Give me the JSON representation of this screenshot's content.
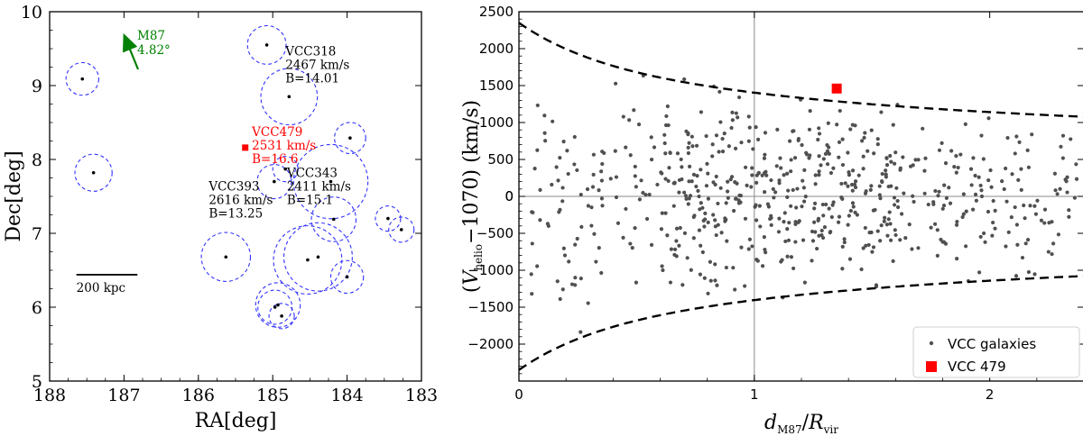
{
  "chart_data": [
    {
      "type": "scatter",
      "xlabel": "RA[deg]",
      "ylabel": "Dec[deg]",
      "xlim": [
        188,
        183
      ],
      "ylim": [
        5,
        10
      ],
      "x_ticks": [
        "188",
        "187",
        "186",
        "185",
        "184",
        "183"
      ],
      "y_ticks": [
        "5",
        "6",
        "7",
        "8",
        "9",
        "10"
      ],
      "colors": {
        "circles": "#3333ff",
        "points": "#000000",
        "highlight": "#ff0000",
        "arrow": "#008000"
      },
      "galaxies": [
        {
          "ra": 187.56,
          "dec": 9.09,
          "r": 0.22
        },
        {
          "ra": 187.41,
          "dec": 7.82,
          "r": 0.25
        },
        {
          "ra": 185.08,
          "dec": 9.55,
          "r": 0.26
        },
        {
          "ra": 184.78,
          "dec": 8.85,
          "r": 0.38
        },
        {
          "ra": 183.96,
          "dec": 8.29,
          "r": 0.21
        },
        {
          "ra": 184.83,
          "dec": 7.87,
          "r": 0.17
        },
        {
          "ra": 184.22,
          "dec": 7.7,
          "r": 0.5
        },
        {
          "ra": 184.98,
          "dec": 7.7,
          "r": 0.23
        },
        {
          "ra": 184.18,
          "dec": 7.19,
          "r": 0.3
        },
        {
          "ra": 183.45,
          "dec": 7.2,
          "r": 0.17
        },
        {
          "ra": 183.27,
          "dec": 7.05,
          "r": 0.17
        },
        {
          "ra": 185.63,
          "dec": 6.68,
          "r": 0.33
        },
        {
          "ra": 184.39,
          "dec": 6.68,
          "r": 0.46
        },
        {
          "ra": 184.53,
          "dec": 6.64,
          "r": 0.46
        },
        {
          "ra": 184.0,
          "dec": 6.41,
          "r": 0.22
        },
        {
          "ra": 184.93,
          "dec": 6.03,
          "r": 0.3
        },
        {
          "ra": 184.97,
          "dec": 6.0,
          "r": 0.23
        },
        {
          "ra": 184.88,
          "dec": 5.88,
          "r": 0.17
        }
      ],
      "highlight_point": {
        "ra": 185.37,
        "dec": 8.16
      },
      "annotations": [
        {
          "lines": [
            "VCC318",
            "2467 km/s",
            "B=14.01"
          ],
          "ra": 184.83,
          "dec": 9.41,
          "color": "black"
        },
        {
          "lines": [
            "VCC479",
            "2531 km/s",
            "B=16.6"
          ],
          "ra": 185.28,
          "dec": 8.32,
          "color": "red"
        },
        {
          "lines": [
            "VCC343",
            "2411 km/s",
            "B=15.1"
          ],
          "ra": 184.81,
          "dec": 7.76,
          "color": "black"
        },
        {
          "lines": [
            "VCC393",
            "2616 km/s",
            "B=13.25"
          ],
          "ra": 185.86,
          "dec": 7.58,
          "color": "black"
        }
      ],
      "arrow_label": [
        "M87",
        "4.82°"
      ],
      "scale_bar": {
        "label": "200 kpc",
        "ra_from": 187.64,
        "ra_to": 186.82,
        "dec": 6.44
      }
    },
    {
      "type": "scatter",
      "xlabel": "d_M87/R_vir",
      "ylabel": "(V_helio − 1070) (km/s)",
      "xlim": [
        0,
        2.4
      ],
      "ylim": [
        -2500,
        2500
      ],
      "x_ticks": [
        "0",
        "1",
        "2"
      ],
      "y_ticks": [
        "−2000",
        "−1500",
        "−1000",
        "−500",
        "0",
        "500",
        "1000",
        "1500",
        "2000",
        "2500"
      ],
      "reference_lines": {
        "x": 1,
        "y": 0
      },
      "envelope": "dashed black curves",
      "legend": {
        "position": "bottom-right",
        "entries": [
          "VCC galaxies",
          "VCC 479"
        ]
      },
      "highlight_point": {
        "x": 1.35,
        "y": 1460
      },
      "colors": {
        "points": "#505050",
        "highlight": "#ff0000",
        "envelope": "#000000",
        "ref": "#888888"
      },
      "n_points": 650
    }
  ]
}
